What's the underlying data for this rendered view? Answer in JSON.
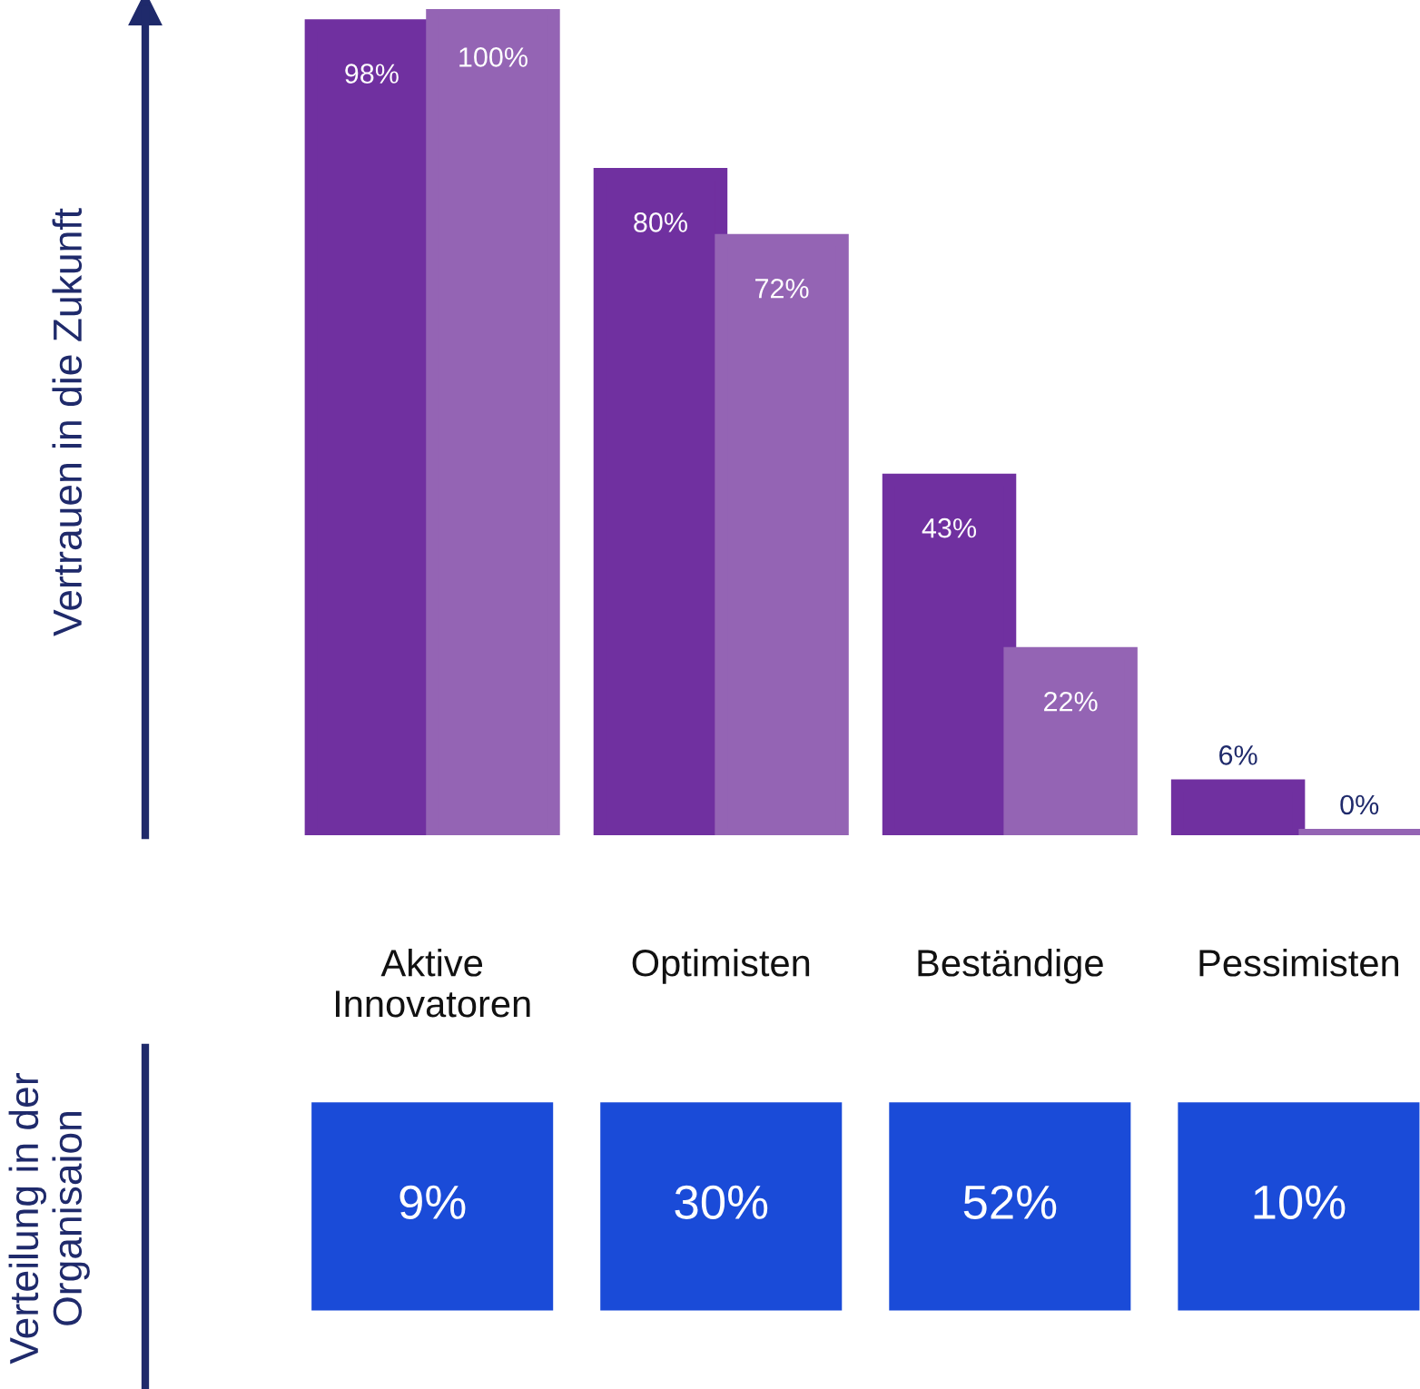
{
  "chart_data": [
    {
      "type": "bar",
      "ylabel": "Vertrauen in die Zukunft",
      "categories": [
        "Aktive\nInnovatoren",
        "Optimisten",
        "Beständige",
        "Pessimisten"
      ],
      "ylim": [
        0,
        100
      ],
      "tick_labels": "x",
      "grid": false,
      "legend": false,
      "series": [
        {
          "color": "#7030a0",
          "values": [
            98,
            80,
            43,
            6
          ],
          "value_labels": [
            "98%",
            "80%",
            "43%",
            "6%"
          ]
        },
        {
          "color": "#9464b4",
          "values": [
            100,
            72,
            22,
            0
          ],
          "value_labels": [
            "100%",
            "72%",
            "22%",
            "0%"
          ]
        }
      ]
    },
    {
      "type": "other",
      "ylabel": "Verteilung in der\nOrganisaion",
      "color": "#1a4bd8",
      "value_labels": [
        "9%",
        "30%",
        "52%",
        "10%"
      ]
    }
  ]
}
